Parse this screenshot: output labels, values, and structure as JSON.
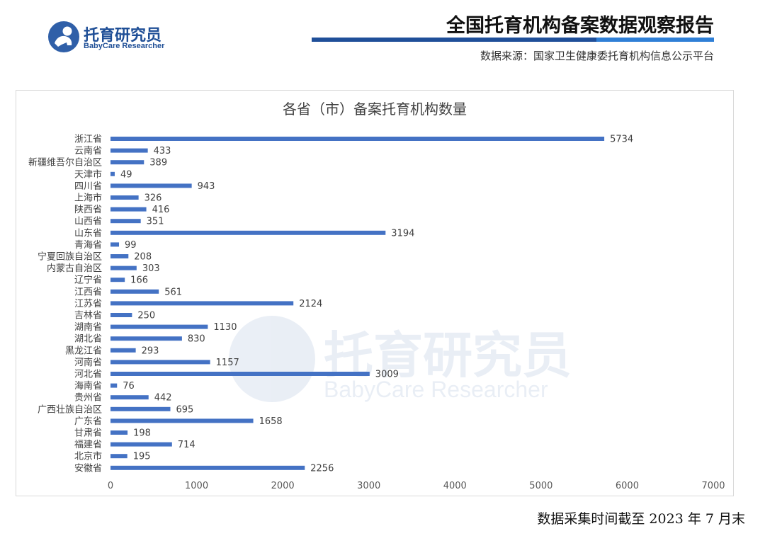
{
  "header": {
    "logo_name": "托育研究员",
    "logo_sub": "BabyCare Researcher",
    "report_title": "全国托育机构备案数据观察报告",
    "source": "数据来源：国家卫生健康委托育机构信息公示平台"
  },
  "watermark": {
    "name": "托育研究员",
    "sub": "BabyCare Researcher"
  },
  "footer": {
    "note": "数据采集时间截至 2023 年 7 月末"
  },
  "colors": {
    "bar": "#4472c4",
    "brand": "#1e4e96",
    "accent": "#2f7fd6"
  },
  "chart_data": {
    "type": "bar",
    "orientation": "horizontal",
    "title": "各省（市）备案托育机构数量",
    "xlabel": "",
    "ylabel": "",
    "xlim": [
      0,
      7000
    ],
    "xticks": [
      0,
      1000,
      2000,
      3000,
      4000,
      5000,
      6000,
      7000
    ],
    "grid": false,
    "legend": "none",
    "categories": [
      "浙江省",
      "云南省",
      "新疆维吾尔自治区",
      "天津市",
      "四川省",
      "上海市",
      "陕西省",
      "山西省",
      "山东省",
      "青海省",
      "宁夏回族自治区",
      "内蒙古自治区",
      "辽宁省",
      "江西省",
      "江苏省",
      "吉林省",
      "湖南省",
      "湖北省",
      "黑龙江省",
      "河南省",
      "河北省",
      "海南省",
      "贵州省",
      "广西壮族自治区",
      "广东省",
      "甘肃省",
      "福建省",
      "北京市",
      "安徽省"
    ],
    "values": [
      5734,
      433,
      389,
      49,
      943,
      326,
      416,
      351,
      3194,
      99,
      208,
      303,
      166,
      561,
      2124,
      250,
      1130,
      830,
      293,
      1157,
      3009,
      76,
      442,
      695,
      1658,
      198,
      714,
      195,
      2256
    ]
  }
}
